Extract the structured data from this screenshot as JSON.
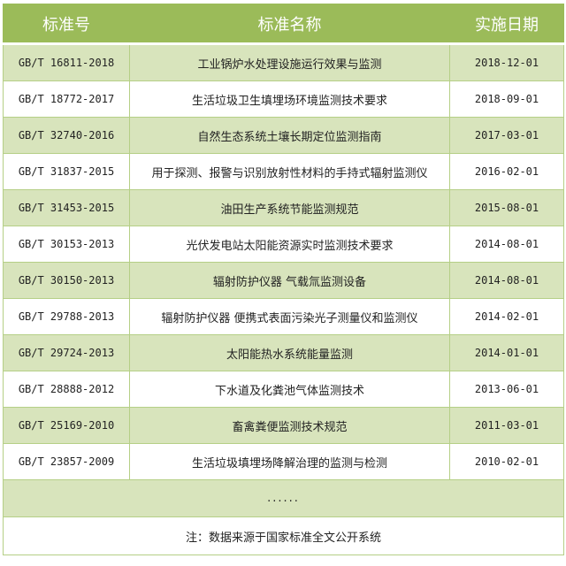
{
  "header": {
    "code": "标准号",
    "name": "标准名称",
    "date": "实施日期"
  },
  "rows": [
    {
      "code": "GB/T 16811-2018",
      "name": "工业锅炉水处理设施运行效果与监测",
      "date": "2018-12-01"
    },
    {
      "code": "GB/T 18772-2017",
      "name": "生活垃圾卫生填埋场环境监测技术要求",
      "date": "2018-09-01"
    },
    {
      "code": "GB/T 32740-2016",
      "name": "自然生态系统土壤长期定位监测指南",
      "date": "2017-03-01"
    },
    {
      "code": "GB/T 31837-2015",
      "name": "用于探测、报警与识别放射性材料的手持式辐射监测仪",
      "date": "2016-02-01"
    },
    {
      "code": "GB/T 31453-2015",
      "name": "油田生产系统节能监测规范",
      "date": "2015-08-01"
    },
    {
      "code": "GB/T 30153-2013",
      "name": "光伏发电站太阳能资源实时监测技术要求",
      "date": "2014-08-01"
    },
    {
      "code": "GB/T 30150-2013",
      "name": "辐射防护仪器 气载氚监测设备",
      "date": "2014-08-01"
    },
    {
      "code": "GB/T 29788-2013",
      "name": "辐射防护仪器 便携式表面污染光子测量仪和监测仪",
      "date": "2014-02-01"
    },
    {
      "code": "GB/T 29724-2013",
      "name": "太阳能热水系统能量监测",
      "date": "2014-01-01"
    },
    {
      "code": "GB/T 28888-2012",
      "name": "下水道及化粪池气体监测技术",
      "date": "2013-06-01"
    },
    {
      "code": "GB/T 25169-2010",
      "name": "畜禽粪便监测技术规范",
      "date": "2011-03-01"
    },
    {
      "code": "GB/T 23857-2009",
      "name": "生活垃圾填埋场降解治理的监测与检测",
      "date": "2010-02-01"
    }
  ],
  "ellipsis": "......",
  "note": "注：数据来源于国家标准全文公开系统",
  "colors": {
    "header": "#9bbb59",
    "alt_row": "#d8e4bc",
    "border": "#b5cf86"
  }
}
